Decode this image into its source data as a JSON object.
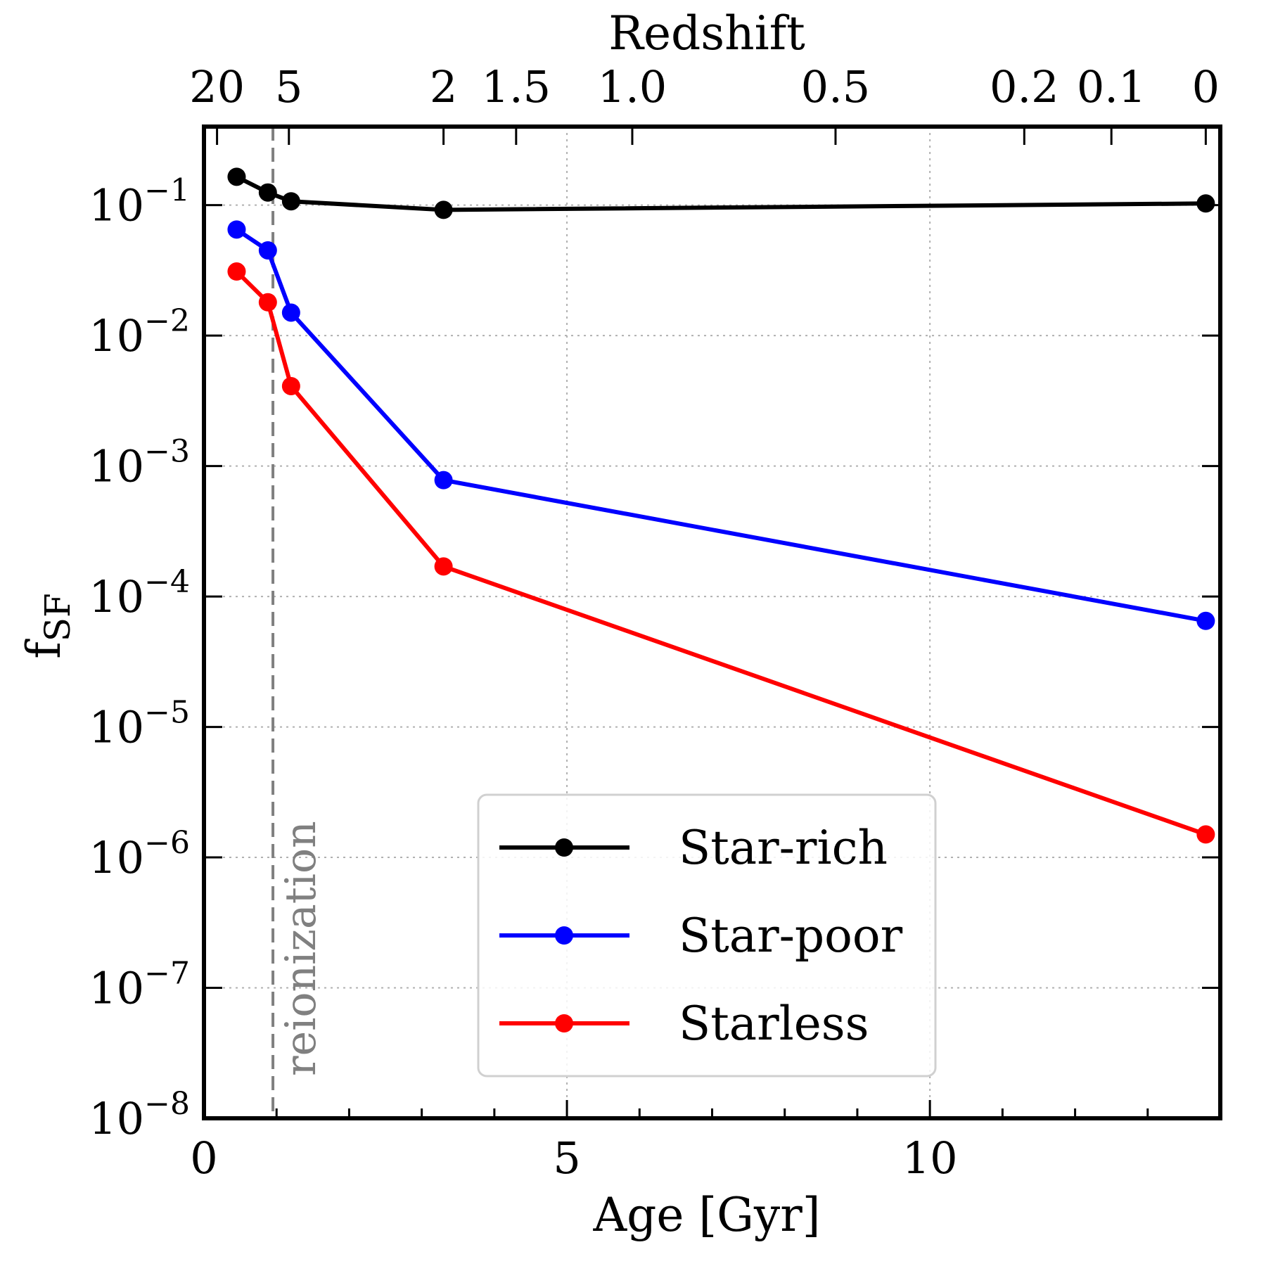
{
  "chart_data": {
    "type": "line",
    "title": "",
    "xlabel": "Age [Gyr]",
    "ylabel": "f",
    "ylabel_sub": "SF",
    "top_xlabel": "Redshift",
    "xlim": [
      0,
      14
    ],
    "ylim": [
      1e-08,
      0.4
    ],
    "yscale": "log",
    "grid": true,
    "legend_position": "lower-right",
    "x_ticks": [
      {
        "value": 0,
        "label": "0"
      },
      {
        "value": 5,
        "label": "5"
      },
      {
        "value": 10,
        "label": "10"
      }
    ],
    "y_ticks": [
      {
        "value": 0.1,
        "base": "10",
        "exp": "−1"
      },
      {
        "value": 0.01,
        "base": "10",
        "exp": "−2"
      },
      {
        "value": 0.001,
        "base": "10",
        "exp": "−3"
      },
      {
        "value": 0.0001,
        "base": "10",
        "exp": "−4"
      },
      {
        "value": 1e-05,
        "base": "10",
        "exp": "−5"
      },
      {
        "value": 1e-06,
        "base": "10",
        "exp": "−6"
      },
      {
        "value": 1e-07,
        "base": "10",
        "exp": "−7"
      },
      {
        "value": 1e-08,
        "base": "10",
        "exp": "−8"
      }
    ],
    "top_ticks": [
      {
        "age": 0.18,
        "label": "20"
      },
      {
        "age": 1.17,
        "label": "5"
      },
      {
        "age": 3.3,
        "label": "2"
      },
      {
        "age": 4.3,
        "label": "1.5"
      },
      {
        "age": 5.9,
        "label": "1.0"
      },
      {
        "age": 8.7,
        "label": "0.5"
      },
      {
        "age": 11.3,
        "label": "0.2"
      },
      {
        "age": 12.5,
        "label": "0.1"
      },
      {
        "age": 13.8,
        "label": "0"
      }
    ],
    "vline": {
      "x": 0.95,
      "label": "reionization",
      "color": "#808080"
    },
    "series": [
      {
        "name": "Star-rich",
        "color": "#000000",
        "x": [
          0.45,
          0.88,
          1.2,
          3.3,
          13.8
        ],
        "y": [
          0.165,
          0.125,
          0.107,
          0.092,
          0.103
        ]
      },
      {
        "name": "Star-poor",
        "color": "#0000ff",
        "x": [
          0.45,
          0.88,
          1.2,
          3.3,
          13.8
        ],
        "y": [
          0.065,
          0.045,
          0.015,
          0.00078,
          6.5e-05
        ]
      },
      {
        "name": "Starless",
        "color": "#ff0000",
        "x": [
          0.45,
          0.88,
          1.2,
          3.3,
          13.8
        ],
        "y": [
          0.031,
          0.018,
          0.0041,
          0.00017,
          1.5e-06
        ]
      }
    ]
  }
}
